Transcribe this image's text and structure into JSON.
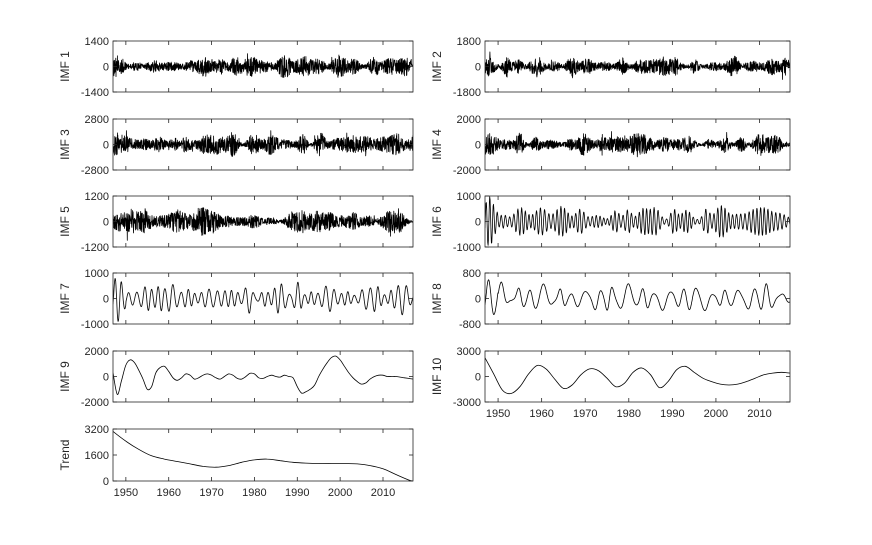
{
  "chart_data": [
    {
      "type": "line",
      "ylabel": "IMF 1",
      "yticks": [
        "1400",
        "0",
        "-1400"
      ],
      "ylim": [
        -1400,
        1400
      ],
      "xlim": [
        1947,
        2017
      ],
      "style": "noise",
      "amplitude": 1400,
      "seed": 11
    },
    {
      "type": "line",
      "ylabel": "IMF 2",
      "yticks": [
        "1800",
        "0",
        "-1800"
      ],
      "ylim": [
        -1800,
        1800
      ],
      "xlim": [
        1947,
        2017
      ],
      "style": "noise",
      "amplitude": 1800,
      "seed": 23
    },
    {
      "type": "line",
      "ylabel": "IMF 3",
      "yticks": [
        "2800",
        "0",
        "-2800"
      ],
      "ylim": [
        -2800,
        2800
      ],
      "xlim": [
        1947,
        2017
      ],
      "style": "noise",
      "amplitude": 2800,
      "seed": 37
    },
    {
      "type": "line",
      "ylabel": "IMF 4",
      "yticks": [
        "2000",
        "0",
        "-2000"
      ],
      "ylim": [
        -2000,
        2000
      ],
      "xlim": [
        1947,
        2017
      ],
      "style": "noise",
      "amplitude": 2000,
      "seed": 41
    },
    {
      "type": "line",
      "ylabel": "IMF 5",
      "yticks": [
        "1200",
        "0",
        "-1200"
      ],
      "ylim": [
        -1200,
        1200
      ],
      "xlim": [
        1947,
        2017
      ],
      "style": "noise",
      "amplitude": 1200,
      "seed": 53
    },
    {
      "type": "line",
      "ylabel": "IMF 6",
      "yticks": [
        "1000",
        "0",
        "-1000"
      ],
      "ylim": [
        -1000,
        1000
      ],
      "xlim": [
        1947,
        2017
      ],
      "style": "oscill",
      "amplitude": 1000,
      "period": 0.9,
      "seed": 67
    },
    {
      "type": "line",
      "ylabel": "IMF 7",
      "yticks": [
        "1000",
        "0",
        "-1000"
      ],
      "ylim": [
        -1000,
        1000
      ],
      "xlim": [
        1947,
        2017
      ],
      "style": "oscill",
      "amplitude": 1000,
      "period": 1.7,
      "seed": 71
    },
    {
      "type": "line",
      "ylabel": "IMF 8",
      "yticks": [
        "800",
        "0",
        "-800"
      ],
      "ylim": [
        -800,
        800
      ],
      "xlim": [
        1947,
        2017
      ],
      "style": "oscill",
      "amplitude": 800,
      "period": 3.2,
      "seed": 83
    },
    {
      "type": "line",
      "ylabel": "IMF 9",
      "yticks": [
        "2000",
        "0",
        "-2000"
      ],
      "ylim": [
        -2000,
        2000
      ],
      "xlim": [
        1947,
        2017
      ],
      "style": "points",
      "x": [
        1947,
        1948,
        1949,
        1950,
        1951,
        1952,
        1953,
        1954,
        1955,
        1956,
        1957,
        1958,
        1959,
        1960,
        1961,
        1962,
        1963,
        1964,
        1965,
        1966,
        1967,
        1968,
        1969,
        1970,
        1971,
        1972,
        1973,
        1974,
        1975,
        1976,
        1977,
        1978,
        1979,
        1980,
        1981,
        1982,
        1983,
        1984,
        1985,
        1986,
        1987,
        1988,
        1989,
        1990,
        1991,
        1992,
        1993,
        1994,
        1995,
        1996,
        1997,
        1998,
        1999,
        2000,
        2001,
        2002,
        2003,
        2004,
        2005,
        2006,
        2007,
        2008,
        2009,
        2010,
        2011,
        2012,
        2013,
        2014,
        2015,
        2016,
        2017
      ],
      "y": [
        300,
        -1400,
        -300,
        900,
        1300,
        1100,
        500,
        -200,
        -1000,
        -800,
        300,
        700,
        800,
        400,
        -100,
        -300,
        -100,
        200,
        100,
        -200,
        -100,
        100,
        200,
        100,
        -100,
        -200,
        0,
        200,
        100,
        -150,
        -200,
        0,
        250,
        200,
        -100,
        -150,
        0,
        100,
        0,
        -50,
        100,
        0,
        -100,
        -800,
        -1300,
        -1200,
        -1000,
        -700,
        0,
        600,
        1100,
        1500,
        1600,
        1300,
        800,
        300,
        -100,
        -400,
        -600,
        -500,
        -200,
        0,
        100,
        100,
        0,
        0,
        0,
        -50,
        -100,
        -150,
        -200
      ]
    },
    {
      "type": "line",
      "ylabel": "IMF 10",
      "yticks": [
        "3000",
        "0",
        "-3000"
      ],
      "ylim": [
        -3000,
        3000
      ],
      "xlim": [
        1947,
        2017
      ],
      "style": "points",
      "x": [
        1947,
        1949,
        1951,
        1953,
        1955,
        1957,
        1959,
        1961,
        1963,
        1965,
        1967,
        1969,
        1971,
        1973,
        1975,
        1977,
        1979,
        1981,
        1983,
        1985,
        1987,
        1989,
        1991,
        1993,
        1995,
        1997,
        1999,
        2001,
        2003,
        2005,
        2007,
        2009,
        2011,
        2013,
        2015,
        2017
      ],
      "y": [
        2200,
        300,
        -1600,
        -2000,
        -1200,
        300,
        1300,
        900,
        -300,
        -1400,
        -1000,
        200,
        900,
        700,
        -200,
        -1200,
        -800,
        500,
        1000,
        200,
        -1300,
        -600,
        800,
        1200,
        500,
        -200,
        -600,
        -900,
        -1000,
        -900,
        -600,
        -200,
        200,
        400,
        500,
        400
      ]
    },
    {
      "type": "line",
      "ylabel": "Trend",
      "yticks": [
        "3200",
        "1600",
        "0"
      ],
      "ylim": [
        0,
        3200
      ],
      "xlim": [
        1947,
        2017
      ],
      "style": "points",
      "x": [
        1947,
        1950,
        1953,
        1956,
        1959,
        1962,
        1965,
        1968,
        1971,
        1974,
        1977,
        1980,
        1983,
        1986,
        1989,
        1992,
        1995,
        1998,
        2001,
        2004,
        2007,
        2010,
        2013,
        2016,
        2017
      ],
      "y": [
        3050,
        2450,
        1950,
        1550,
        1350,
        1200,
        1050,
        900,
        850,
        950,
        1150,
        1300,
        1350,
        1250,
        1150,
        1100,
        1080,
        1070,
        1070,
        1050,
        950,
        750,
        400,
        60,
        0
      ]
    }
  ],
  "xticks": [
    "1950",
    "1960",
    "1970",
    "1980",
    "1990",
    "2000",
    "2010"
  ],
  "xtick_values": [
    1950,
    1960,
    1970,
    1980,
    1990,
    2000,
    2010
  ]
}
